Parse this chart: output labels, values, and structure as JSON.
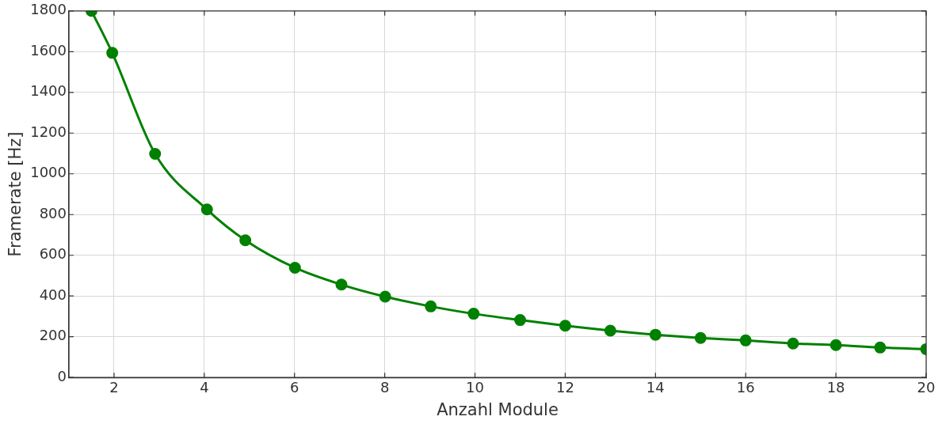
{
  "chart_data": {
    "type": "line",
    "xlabel": "Anzahl Module",
    "ylabel": "Framerate [Hz]",
    "x": [
      1.5,
      1.96,
      2.91,
      4.06,
      4.91,
      6.01,
      7.04,
      8.01,
      9.02,
      9.97,
      11,
      12,
      13,
      14,
      15,
      16,
      17.05,
      18,
      18.98,
      20
    ],
    "series": [
      {
        "color": "#008000",
        "values": [
          1800,
          1594,
          1098,
          825,
          674,
          539,
          456,
          397,
          349,
          313,
          282,
          254,
          230,
          210,
          194,
          182,
          167,
          159,
          147,
          139
        ]
      }
    ],
    "xlim": [
      1,
      20
    ],
    "xticks": [
      2,
      4,
      6,
      8,
      10,
      12,
      14,
      16,
      18,
      20
    ],
    "ylim": [
      0,
      1800
    ],
    "yticks": [
      0,
      200,
      400,
      600,
      800,
      1000,
      1200,
      1400,
      1600,
      1800
    ],
    "grid": true,
    "legend": false,
    "marker": "circle",
    "line_style": "solid"
  }
}
